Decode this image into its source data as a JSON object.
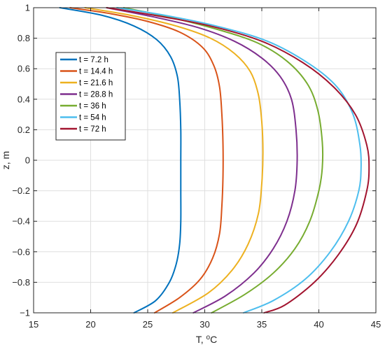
{
  "chart_data": {
    "type": "line",
    "title": "",
    "xlabel": "T, °C",
    "xlabel_main": "T, ",
    "xlabel_sup": "o",
    "xlabel_unit": "C",
    "ylabel": "z, m",
    "xlim": [
      15,
      45
    ],
    "ylim": [
      -1,
      1
    ],
    "xticks": [
      15,
      20,
      25,
      30,
      35,
      40,
      45
    ],
    "xtick_labels": [
      "15",
      "20",
      "25",
      "30",
      "35",
      "40",
      "45"
    ],
    "yticks": [
      1,
      0.8,
      0.6,
      0.4,
      0.2,
      0,
      -0.2,
      -0.4,
      -0.6,
      -0.8,
      -1
    ],
    "ytick_labels": [
      "1",
      "0.8",
      "0.6",
      "0.4",
      "0.2",
      "0",
      "−0.2",
      "−0.4",
      "−0.6",
      "−0.8",
      "−1"
    ],
    "grid": true,
    "legend_position": "upper-left",
    "series": [
      {
        "name": "t = 7.2 h",
        "color": "#0072BD",
        "points": [
          [
            17.3,
            1.0
          ],
          [
            21.0,
            0.95
          ],
          [
            23.8,
            0.88
          ],
          [
            25.8,
            0.79
          ],
          [
            27.0,
            0.68
          ],
          [
            27.6,
            0.55
          ],
          [
            27.8,
            0.4
          ],
          [
            27.9,
            0.2
          ],
          [
            27.9,
            0.0
          ],
          [
            27.9,
            -0.2
          ],
          [
            27.9,
            -0.4
          ],
          [
            27.8,
            -0.55
          ],
          [
            27.5,
            -0.68
          ],
          [
            26.9,
            -0.8
          ],
          [
            25.7,
            -0.92
          ],
          [
            23.8,
            -1.0
          ]
        ]
      },
      {
        "name": "t = 14.4 h",
        "color": "#D95319",
        "points": [
          [
            18.2,
            1.0
          ],
          [
            21.8,
            0.96
          ],
          [
            25.0,
            0.91
          ],
          [
            27.8,
            0.84
          ],
          [
            29.8,
            0.74
          ],
          [
            30.8,
            0.62
          ],
          [
            31.3,
            0.48
          ],
          [
            31.5,
            0.3
          ],
          [
            31.6,
            0.1
          ],
          [
            31.6,
            -0.1
          ],
          [
            31.5,
            -0.3
          ],
          [
            31.3,
            -0.48
          ],
          [
            30.7,
            -0.64
          ],
          [
            29.6,
            -0.78
          ],
          [
            27.8,
            -0.9
          ],
          [
            25.6,
            -1.0
          ]
        ]
      },
      {
        "name": "t = 21.6 h",
        "color": "#EDB120",
        "points": [
          [
            19.5,
            1.0
          ],
          [
            23.5,
            0.95
          ],
          [
            27.5,
            0.88
          ],
          [
            30.5,
            0.8
          ],
          [
            32.6,
            0.7
          ],
          [
            34.0,
            0.58
          ],
          [
            34.7,
            0.43
          ],
          [
            35.0,
            0.25
          ],
          [
            35.1,
            0.05
          ],
          [
            35.0,
            -0.15
          ],
          [
            34.7,
            -0.35
          ],
          [
            33.8,
            -0.55
          ],
          [
            32.4,
            -0.72
          ],
          [
            30.3,
            -0.87
          ],
          [
            27.2,
            -1.0
          ]
        ]
      },
      {
        "name": "t = 28.8 h",
        "color": "#7E2F8E",
        "points": [
          [
            21.4,
            1.0
          ],
          [
            25.5,
            0.94
          ],
          [
            29.4,
            0.87
          ],
          [
            32.6,
            0.78
          ],
          [
            35.0,
            0.67
          ],
          [
            36.6,
            0.55
          ],
          [
            37.6,
            0.4
          ],
          [
            38.0,
            0.2
          ],
          [
            38.1,
            0.0
          ],
          [
            37.9,
            -0.2
          ],
          [
            37.2,
            -0.4
          ],
          [
            36.0,
            -0.58
          ],
          [
            34.3,
            -0.74
          ],
          [
            31.8,
            -0.89
          ],
          [
            29.0,
            -1.0
          ]
        ]
      },
      {
        "name": "t = 36 h",
        "color": "#77AC30",
        "points": [
          [
            22.9,
            1.0
          ],
          [
            26.8,
            0.94
          ],
          [
            31.0,
            0.86
          ],
          [
            34.6,
            0.77
          ],
          [
            37.2,
            0.65
          ],
          [
            39.0,
            0.5
          ],
          [
            39.9,
            0.33
          ],
          [
            40.3,
            0.12
          ],
          [
            40.3,
            -0.05
          ],
          [
            40.0,
            -0.2
          ],
          [
            39.2,
            -0.4
          ],
          [
            37.9,
            -0.58
          ],
          [
            36.0,
            -0.74
          ],
          [
            33.5,
            -0.88
          ],
          [
            30.6,
            -1.0
          ]
        ]
      },
      {
        "name": "t = 54 h",
        "color": "#4DBEEE",
        "points": [
          [
            22.3,
            1.0
          ],
          [
            26.5,
            0.95
          ],
          [
            31.0,
            0.88
          ],
          [
            35.5,
            0.78
          ],
          [
            39.2,
            0.63
          ],
          [
            41.6,
            0.48
          ],
          [
            43.0,
            0.3
          ],
          [
            43.6,
            0.1
          ],
          [
            43.7,
            -0.05
          ],
          [
            43.5,
            -0.2
          ],
          [
            42.6,
            -0.4
          ],
          [
            41.0,
            -0.6
          ],
          [
            38.8,
            -0.78
          ],
          [
            36.0,
            -0.92
          ],
          [
            33.4,
            -1.0
          ]
        ]
      },
      {
        "name": "t = 72 h",
        "color": "#A2142F",
        "points": [
          [
            21.4,
            1.0
          ],
          [
            25.6,
            0.95
          ],
          [
            30.5,
            0.88
          ],
          [
            35.0,
            0.78
          ],
          [
            38.6,
            0.64
          ],
          [
            41.3,
            0.48
          ],
          [
            43.2,
            0.3
          ],
          [
            44.2,
            0.1
          ],
          [
            44.4,
            -0.05
          ],
          [
            44.2,
            -0.2
          ],
          [
            43.3,
            -0.42
          ],
          [
            41.7,
            -0.62
          ],
          [
            39.6,
            -0.8
          ],
          [
            37.0,
            -0.95
          ],
          [
            35.2,
            -1.0
          ]
        ]
      }
    ]
  }
}
